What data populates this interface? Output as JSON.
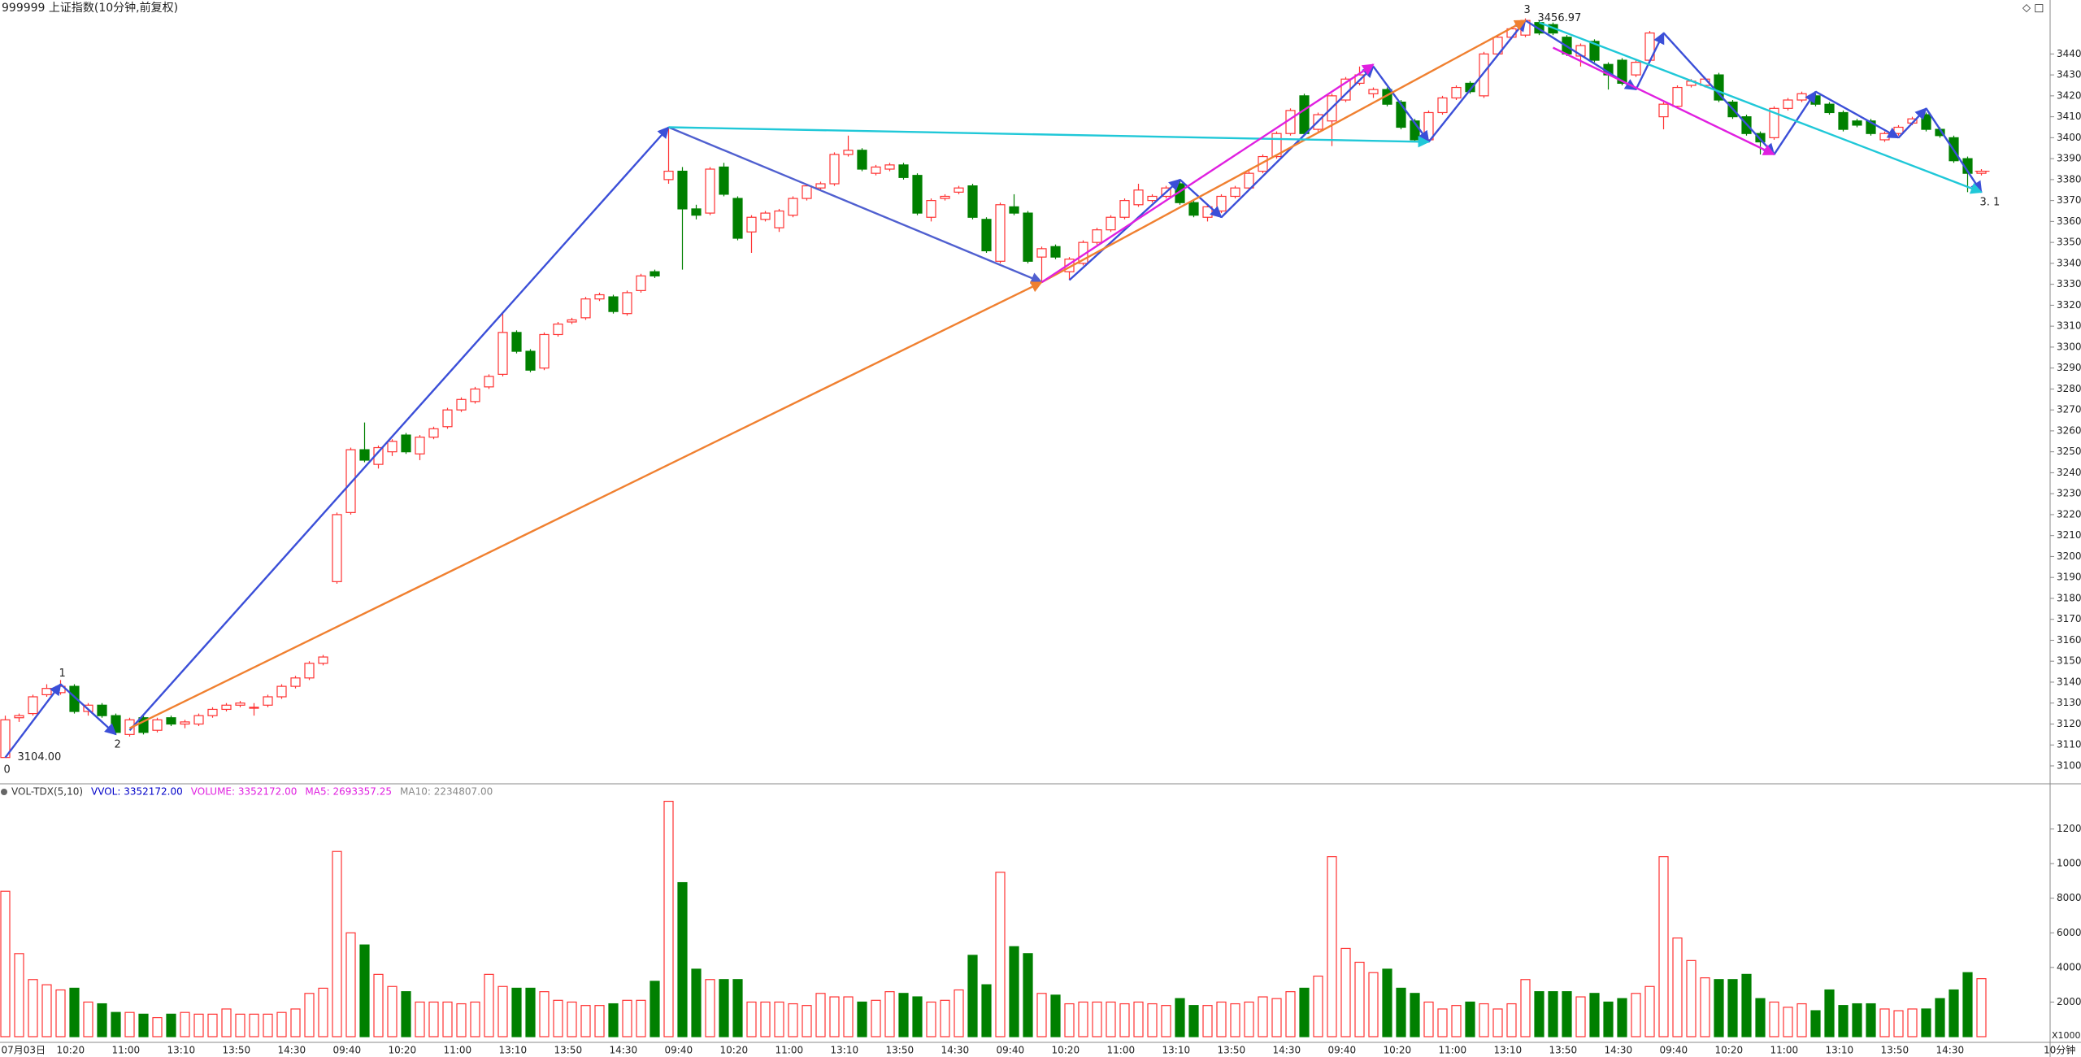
{
  "chart_data": {
    "type": "candlestick",
    "title": "999999 上证指数(10分钟,前复权)",
    "period_label": "10分钟",
    "categories": [
      "07月03日",
      null,
      null,
      null,
      "10:20",
      null,
      null,
      null,
      "11:00",
      null,
      null,
      null,
      "13:10",
      null,
      null,
      null,
      "13:50",
      null,
      null,
      null,
      "14:30",
      null,
      null,
      null,
      "09:40",
      null,
      null,
      null,
      "10:20",
      null,
      null,
      null,
      "11:00",
      null,
      null,
      null,
      "13:10",
      null,
      null,
      null,
      "13:50",
      null,
      null,
      null,
      "14:30",
      null,
      null,
      null,
      "09:40",
      null,
      null,
      null,
      "10:20",
      null,
      null,
      null,
      "11:00",
      null,
      null,
      null,
      "13:10",
      null,
      null,
      null,
      "13:50",
      null,
      null,
      null,
      "14:30",
      null,
      null,
      null,
      "09:40",
      null,
      null,
      null,
      "10:20",
      null,
      null,
      null,
      "11:00",
      null,
      null,
      null,
      "13:10",
      null,
      null,
      null,
      "13:50",
      null,
      null,
      null,
      "14:30",
      null,
      null,
      null,
      "09:40",
      null,
      null,
      null,
      "10:20",
      null,
      null,
      null,
      "11:00",
      null,
      null,
      null,
      "13:10",
      null,
      null,
      null,
      "13:50",
      null,
      null,
      null,
      "14:30",
      null,
      null,
      null,
      "09:40",
      null,
      null,
      null,
      "10:20",
      null,
      null,
      null,
      "11:00",
      null,
      null,
      null,
      "13:10",
      null,
      null,
      null,
      "13:50",
      null,
      null,
      null,
      "14:30",
      null,
      null,
      null
    ],
    "open": [
      3104,
      3123,
      3125,
      3134,
      3135,
      3138,
      3126,
      3129,
      3124,
      3115,
      3123,
      3117,
      3123,
      3120,
      3120,
      3124,
      3127,
      3129,
      3128,
      3129,
      3133,
      3138,
      3142,
      3149,
      3188,
      3221,
      3251,
      3244,
      3250,
      3258,
      3249,
      3257,
      3262,
      3270,
      3274,
      3281,
      3287,
      3307,
      3298,
      3290,
      3306,
      3312,
      3314,
      3323,
      3324,
      3316,
      3327,
      3336,
      3380,
      3384,
      3366,
      3364,
      3386,
      3371,
      3355,
      3361,
      3357,
      3363,
      3371,
      3376,
      3378,
      3392,
      3394,
      3383,
      3385,
      3387,
      3382,
      3362,
      3371,
      3374,
      3377,
      3361,
      3341,
      3367,
      3364,
      3343,
      3348,
      3336,
      3340,
      3350,
      3356,
      3362,
      3368,
      3370,
      3372,
      3378,
      3369,
      3362,
      3365,
      3372,
      3376,
      3384,
      3391,
      3402,
      3420,
      3404,
      3408,
      3418,
      3426,
      3421,
      3423,
      3417,
      3408,
      3399,
      3412,
      3419,
      3426,
      3420,
      3440,
      3448,
      3449,
      3455,
      3454,
      3448,
      3439,
      3446,
      3435,
      3437,
      3430,
      3437,
      3410,
      3415,
      3425,
      3425,
      3430,
      3417,
      3410,
      3402,
      3400,
      3414,
      3418,
      3420,
      3416,
      3412,
      3408,
      3408,
      3399,
      3402,
      3407,
      3411,
      3404,
      3400,
      3390,
      3383
    ],
    "high": [
      3124,
      3125,
      3134,
      3139,
      3141,
      3139,
      3130,
      3130,
      3125,
      3123,
      3124,
      3123,
      3124,
      3122,
      3125,
      3128,
      3130,
      3131,
      3130,
      3134,
      3139,
      3143,
      3150,
      3153,
      3221,
      3252,
      3264,
      3253,
      3256,
      3259,
      3258,
      3262,
      3271,
      3276,
      3281,
      3287,
      3316,
      3308,
      3299,
      3307,
      3312,
      3314,
      3324,
      3326,
      3325,
      3327,
      3335,
      3337,
      3405,
      3386,
      3368,
      3386,
      3388,
      3372,
      3363,
      3365,
      3366,
      3372,
      3378,
      3379,
      3393,
      3401,
      3395,
      3387,
      3388,
      3388,
      3383,
      3371,
      3373,
      3377,
      3378,
      3362,
      3369,
      3373,
      3365,
      3348,
      3349,
      3343,
      3351,
      3357,
      3363,
      3371,
      3378,
      3373,
      3377,
      3380,
      3370,
      3368,
      3373,
      3377,
      3384,
      3392,
      3403,
      3414,
      3421,
      3412,
      3421,
      3429,
      3434,
      3424,
      3424,
      3418,
      3409,
      3413,
      3420,
      3425,
      3427,
      3441,
      3449,
      3453,
      3456.97,
      3456,
      3455,
      3449,
      3445,
      3447,
      3436,
      3438,
      3437,
      3451,
      3417,
      3425,
      3428,
      3429,
      3431,
      3418,
      3411,
      3403,
      3415,
      3419,
      3422,
      3421,
      3417,
      3413,
      3409,
      3409,
      3403,
      3406,
      3410,
      3412,
      3405,
      3401,
      3391,
      3385
    ],
    "low": [
      3104,
      3121,
      3124,
      3133,
      3134,
      3125,
      3124,
      3123,
      3115,
      3114,
      3115,
      3116,
      3119,
      3118,
      3119,
      3123,
      3126,
      3128,
      3124,
      3128,
      3132,
      3137,
      3141,
      3148,
      3187,
      3220,
      3245,
      3242,
      3248,
      3249,
      3246,
      3256,
      3261,
      3269,
      3273,
      3280,
      3286,
      3297,
      3288,
      3289,
      3305,
      3311,
      3313,
      3322,
      3316,
      3315,
      3326,
      3333,
      3378,
      3337,
      3361,
      3363,
      3372,
      3351,
      3345,
      3360,
      3355,
      3362,
      3370,
      3375,
      3377,
      3391,
      3384,
      3382,
      3384,
      3380,
      3363,
      3360,
      3370,
      3373,
      3361,
      3345,
      3340,
      3363,
      3340,
      3331,
      3342,
      3332,
      3339,
      3349,
      3355,
      3361,
      3367,
      3369,
      3371,
      3368,
      3362,
      3360,
      3364,
      3371,
      3375,
      3383,
      3390,
      3401,
      3401,
      3403,
      3396,
      3417,
      3425,
      3419,
      3415,
      3404,
      3398,
      3398,
      3411,
      3418,
      3421,
      3419,
      3439,
      3447,
      3448,
      3449,
      3449,
      3439,
      3434,
      3436,
      3423,
      3425,
      3429,
      3436,
      3404,
      3414,
      3424,
      3424,
      3417,
      3409,
      3401,
      3392,
      3399,
      3413,
      3417,
      3415,
      3411,
      3403,
      3405,
      3401,
      3398,
      3401,
      3406,
      3403,
      3400,
      3388,
      3374,
      3382
    ],
    "close": [
      3122,
      3124,
      3133,
      3137,
      3138,
      3126,
      3129,
      3124,
      3116,
      3122,
      3116,
      3122,
      3120,
      3121,
      3124,
      3127,
      3129,
      3130,
      3128,
      3133,
      3138,
      3142,
      3149,
      3152,
      3220,
      3251,
      3246,
      3252,
      3255,
      3250,
      3257,
      3261,
      3270,
      3275,
      3280,
      3286,
      3307,
      3298,
      3289,
      3306,
      3311,
      3313,
      3323,
      3325,
      3317,
      3326,
      3334,
      3334,
      3384,
      3366,
      3363,
      3385,
      3373,
      3352,
      3362,
      3364,
      3365,
      3371,
      3377,
      3378,
      3392,
      3394,
      3385,
      3386,
      3387,
      3381,
      3364,
      3370,
      3372,
      3376,
      3362,
      3346,
      3368,
      3364,
      3341,
      3347,
      3343,
      3342,
      3350,
      3356,
      3362,
      3370,
      3375,
      3372,
      3376,
      3369,
      3363,
      3367,
      3372,
      3376,
      3383,
      3391,
      3402,
      3413,
      3402,
      3411,
      3420,
      3428,
      3430,
      3423,
      3416,
      3405,
      3399,
      3412,
      3419,
      3424,
      3422,
      3440,
      3448,
      3452,
      3456,
      3450,
      3450,
      3440,
      3444,
      3437,
      3430,
      3426,
      3436,
      3450,
      3416,
      3424,
      3427,
      3428,
      3418,
      3410,
      3402,
      3398,
      3414,
      3418,
      3421,
      3416,
      3412,
      3404,
      3406,
      3402,
      3402,
      3405,
      3409,
      3404,
      3401,
      3389,
      3383,
      3384
    ],
    "volume": [
      8400,
      4800,
      3300,
      3000,
      2700,
      2800,
      2000,
      1900,
      1400,
      1400,
      1300,
      1100,
      1300,
      1400,
      1300,
      1300,
      1600,
      1300,
      1300,
      1300,
      1400,
      1600,
      2500,
      2800,
      10700,
      6000,
      5300,
      3600,
      2900,
      2600,
      2000,
      2000,
      2000,
      1900,
      2000,
      3600,
      2900,
      2800,
      2800,
      2600,
      2100,
      2000,
      1800,
      1800,
      1900,
      2100,
      2100,
      3200,
      13600,
      8900,
      3900,
      3300,
      3300,
      3300,
      2000,
      2000,
      2000,
      1900,
      1800,
      2500,
      2300,
      2300,
      2000,
      2100,
      2600,
      2500,
      2300,
      2000,
      2100,
      2700,
      4700,
      3000,
      9500,
      5200,
      4800,
      2500,
      2400,
      1900,
      2000,
      2000,
      2000,
      1900,
      2000,
      1900,
      1800,
      2200,
      1800,
      1800,
      2000,
      1900,
      2000,
      2300,
      2200,
      2600,
      2800,
      3500,
      10400,
      5100,
      4300,
      3700,
      3900,
      2800,
      2500,
      2000,
      1600,
      1800,
      2000,
      1900,
      1600,
      1900,
      3300,
      2600,
      2600,
      2600,
      2300,
      2500,
      2000,
      2200,
      2500,
      2900,
      10400,
      5700,
      4400,
      3400,
      3300,
      3300,
      3600,
      2200,
      2000,
      1700,
      1900,
      1500,
      2700,
      1800,
      1900,
      1900,
      1600,
      1500,
      1600,
      1600,
      2200,
      2700,
      3700,
      3352.172
    ],
    "up_color": "#ff3232",
    "down_color": "#008000",
    "ylim": [
      3093,
      3458
    ],
    "yticks": [
      3100,
      3110,
      3120,
      3130,
      3140,
      3150,
      3160,
      3170,
      3180,
      3190,
      3200,
      3210,
      3220,
      3230,
      3240,
      3250,
      3260,
      3270,
      3280,
      3290,
      3300,
      3310,
      3320,
      3330,
      3340,
      3350,
      3360,
      3370,
      3380,
      3390,
      3400,
      3410,
      3420,
      3430,
      3440
    ],
    "volume_ylim": [
      0,
      14000
    ],
    "volume_yticks": [
      2000,
      4000,
      6000,
      8000,
      10000,
      12000
    ],
    "volume_unit_label": "X1000",
    "volume_legend": [
      {
        "text": "VOL-TDX(5,10)",
        "color": "#333333"
      },
      {
        "text": "VVOL: 3352172.00",
        "color": "#0000c8"
      },
      {
        "text": "VOLUME: 3352172.00",
        "color": "#e020e0"
      },
      {
        "text": "MA5: 2693357.25",
        "color": "#e020e0"
      },
      {
        "text": "MA10: 2234807.00",
        "color": "#888888"
      }
    ],
    "annotations": [
      {
        "text": "0",
        "x": 0,
        "y": 3098
      },
      {
        "text": "3104.00",
        "x": 1,
        "y": 3104
      },
      {
        "text": "1",
        "x": 4,
        "y": 3144
      },
      {
        "text": "2",
        "x": 8,
        "y": 3110
      },
      {
        "text": "3",
        "x": 110,
        "y": 3461
      },
      {
        "text": "3456.97",
        "x": 111,
        "y": 3456.97
      },
      {
        "text": "3. 1",
        "x": 143,
        "y": 3369
      }
    ],
    "trend_lines": [
      {
        "color": "#3b4fd8",
        "from": [
          0,
          3104
        ],
        "to": [
          4,
          3139
        ]
      },
      {
        "color": "#3b4fd8",
        "from": [
          4,
          3139
        ],
        "to": [
          8,
          3115
        ]
      },
      {
        "color": "#3b4fd8",
        "from": [
          9,
          3117
        ],
        "to": [
          48,
          3405
        ]
      },
      {
        "color": "#5060d0",
        "from": [
          48,
          3405
        ],
        "to": [
          75,
          3331
        ]
      },
      {
        "color": "#3b4fd8",
        "from": [
          77,
          3332
        ],
        "to": [
          85,
          3380
        ]
      },
      {
        "color": "#3b4fd8",
        "from": [
          85,
          3380
        ],
        "to": [
          88,
          3362
        ]
      },
      {
        "color": "#3b4fd8",
        "from": [
          88,
          3362
        ],
        "to": [
          99,
          3434
        ]
      },
      {
        "color": "#3b4fd8",
        "from": [
          99,
          3434
        ],
        "to": [
          103,
          3398
        ]
      },
      {
        "color": "#3b4fd8",
        "from": [
          103,
          3398
        ],
        "to": [
          110,
          3456
        ]
      },
      {
        "color": "#3b4fd8",
        "from": [
          110,
          3456
        ],
        "to": [
          118,
          3423
        ]
      },
      {
        "color": "#3b4fd8",
        "from": [
          118,
          3423
        ],
        "to": [
          120,
          3450
        ]
      },
      {
        "color": "#3b4fd8",
        "from": [
          120,
          3450
        ],
        "to": [
          128,
          3392
        ]
      },
      {
        "color": "#3b4fd8",
        "from": [
          128,
          3392
        ],
        "to": [
          131,
          3422
        ]
      },
      {
        "color": "#3b4fd8",
        "from": [
          131,
          3422
        ],
        "to": [
          137,
          3400
        ]
      },
      {
        "color": "#3b4fd8",
        "from": [
          137,
          3400
        ],
        "to": [
          139,
          3414
        ]
      },
      {
        "color": "#3b4fd8",
        "from": [
          139,
          3414
        ],
        "to": [
          143,
          3374
        ]
      },
      {
        "color": "#f08030",
        "from": [
          9,
          3118
        ],
        "to": [
          75,
          3331
        ]
      },
      {
        "color": "#f08030",
        "from": [
          75,
          3331
        ],
        "to": [
          110,
          3456
        ]
      },
      {
        "color": "#20c8d8",
        "from": [
          48,
          3405
        ],
        "to": [
          103,
          3398
        ]
      },
      {
        "color": "#20c8d8",
        "from": [
          111,
          3455
        ],
        "to": [
          143,
          3374
        ]
      },
      {
        "color": "#e020e0",
        "from": [
          75,
          3331
        ],
        "to": [
          99,
          3435
        ]
      },
      {
        "color": "#e020e0",
        "from": [
          112,
          3443
        ],
        "to": [
          128,
          3392
        ]
      }
    ]
  }
}
